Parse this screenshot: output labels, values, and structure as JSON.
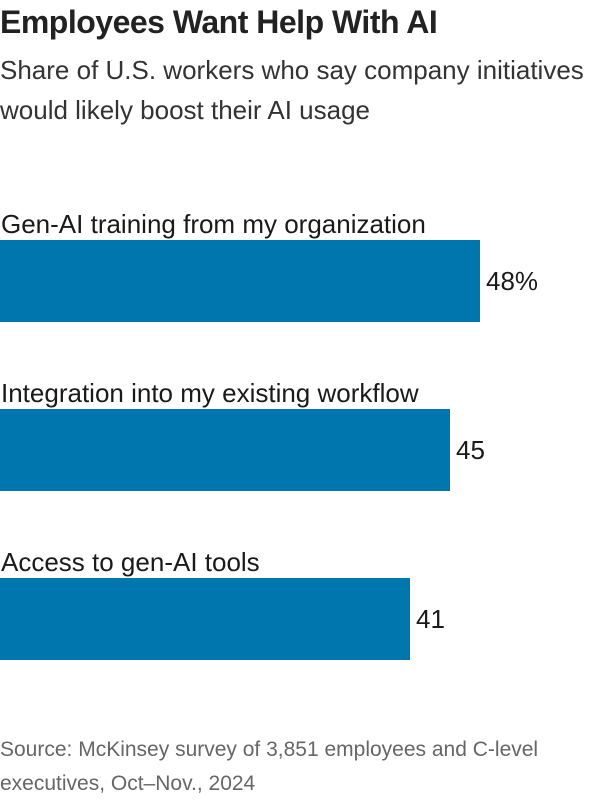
{
  "title": "Employees Want Help With AI",
  "subtitle": "Share of U.S. workers who say company initiatives would likely boost their AI usage",
  "source": "Source: McKinsey survey of 3,851 employees and C-level executives, Oct–Nov., 2024",
  "colors": {
    "bar": "#0076ae",
    "text": "#1a1a1a",
    "source": "#666666"
  },
  "chart_data": {
    "type": "bar",
    "orientation": "horizontal",
    "categories": [
      "Gen-AI training from my organization",
      "Integration into my existing workflow",
      "Access to gen-AI tools"
    ],
    "values": [
      48,
      45,
      41
    ],
    "value_labels": [
      "48%",
      "45",
      "41"
    ],
    "unit": "%",
    "xlim": [
      0,
      57.5
    ],
    "grid": false,
    "legend": "none"
  }
}
